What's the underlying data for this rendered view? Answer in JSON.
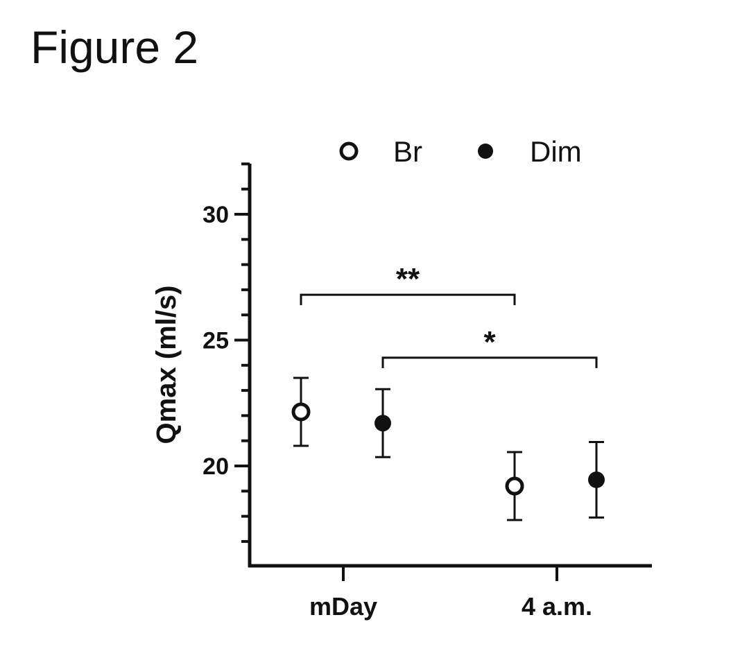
{
  "figure_title": "Figure 2",
  "chart_data": {
    "type": "scatter",
    "ylabel": "Qmax (ml/s)",
    "xlabel": "",
    "ylim": [
      16.2,
      32
    ],
    "yticks": [
      20,
      25,
      30
    ],
    "categories": [
      "mDay",
      "4 a.m."
    ],
    "legend_position": "top",
    "grid": false,
    "series": [
      {
        "name": "Br",
        "marker": "open-circle",
        "color": "#111111",
        "points": [
          {
            "category": "mDay",
            "y": 22.15,
            "err_low": 20.8,
            "err_high": 23.5
          },
          {
            "category": "4 a.m.",
            "y": 19.2,
            "err_low": 17.85,
            "err_high": 20.55
          }
        ]
      },
      {
        "name": "Dim",
        "marker": "filled-circle",
        "color": "#111111",
        "points": [
          {
            "category": "mDay",
            "y": 21.7,
            "err_low": 20.35,
            "err_high": 23.05
          },
          {
            "category": "4 a.m.",
            "y": 19.45,
            "err_low": 17.95,
            "err_high": 20.95
          }
        ]
      }
    ],
    "significance": [
      {
        "label": "**",
        "from": {
          "series": "Br",
          "category": "mDay"
        },
        "to": {
          "series": "Br",
          "category": "4 a.m."
        },
        "y": 26.8
      },
      {
        "label": "*",
        "from": {
          "series": "Dim",
          "category": "mDay"
        },
        "to": {
          "series": "Dim",
          "category": "4 a.m."
        },
        "y": 24.3
      }
    ]
  }
}
